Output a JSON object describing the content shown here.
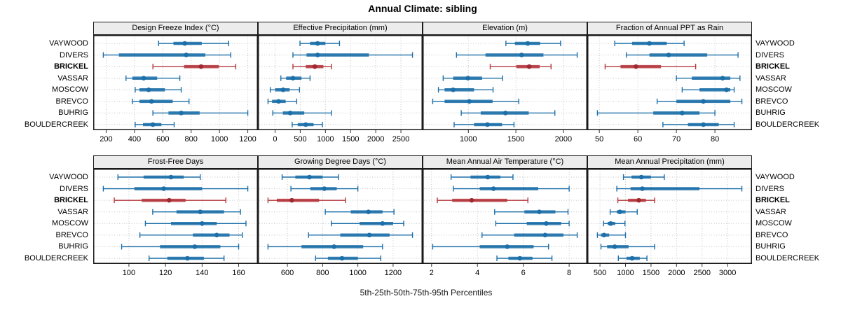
{
  "title": "Annual Climate: sibling",
  "caption": "5th-25th-50th-75th-95th Percentiles",
  "percentile_labels": [
    "5th",
    "25th",
    "50th",
    "75th",
    "95th"
  ],
  "sites": [
    "VAYWOOD",
    "DIVERS",
    "BRICKEL",
    "VASSAR",
    "MOSCOW",
    "BREVCO",
    "BUHRIG",
    "BOULDERCREEK"
  ],
  "highlight_site": "BRICKEL",
  "colors": {
    "normal": "#1c6fa9",
    "normal_band": "#1c6fa9",
    "highlight": "#b5383d",
    "highlight_dot": "#9e2b31",
    "grid": "#c3c3c3",
    "strip_bg": "#ececec",
    "border": "#1a1a1a"
  },
  "chart_data": [
    {
      "type": "dotplot-interval",
      "title": "Design Freeze Index (°C)",
      "ticks": [
        200,
        400,
        600,
        800,
        1000,
        1200
      ],
      "percentiles": [
        "5th",
        "25th",
        "50th",
        "75th",
        "95th"
      ],
      "series": [
        {
          "name": "VAYWOOD",
          "values": [
            570,
            675,
            755,
            875,
            1065
          ]
        },
        {
          "name": "DIVERS",
          "values": [
            180,
            290,
            765,
            900,
            1080
          ]
        },
        {
          "name": "BRICKEL",
          "values": [
            530,
            750,
            870,
            995,
            1115
          ]
        },
        {
          "name": "VASSAR",
          "values": [
            340,
            385,
            465,
            560,
            720
          ]
        },
        {
          "name": "MOSCOW",
          "values": [
            405,
            435,
            500,
            615,
            730
          ]
        },
        {
          "name": "BREVCO",
          "values": [
            385,
            435,
            520,
            670,
            785
          ]
        },
        {
          "name": "BUHRIG",
          "values": [
            530,
            640,
            730,
            860,
            1200
          ]
        },
        {
          "name": "BOULDERCREEK",
          "values": [
            405,
            460,
            530,
            590,
            680
          ]
        }
      ]
    },
    {
      "type": "dotplot-interval",
      "title": "Effective Precipitation (mm)",
      "ticks": [
        0,
        500,
        1000,
        1500,
        2000,
        2500
      ],
      "percentiles": [
        "5th",
        "25th",
        "50th",
        "75th",
        "95th"
      ],
      "series": [
        {
          "name": "VAYWOOD",
          "values": [
            495,
            695,
            845,
            1000,
            1280
          ]
        },
        {
          "name": "DIVERS",
          "values": [
            355,
            625,
            845,
            1865,
            2730
          ]
        },
        {
          "name": "BRICKEL",
          "values": [
            355,
            610,
            790,
            960,
            1120
          ]
        },
        {
          "name": "VASSAR",
          "values": [
            115,
            220,
            355,
            525,
            695
          ]
        },
        {
          "name": "MOSCOW",
          "values": [
            -95,
            0,
            160,
            290,
            485
          ]
        },
        {
          "name": "BREVCO",
          "values": [
            -140,
            -60,
            70,
            210,
            430
          ]
        },
        {
          "name": "BUHRIG",
          "values": [
            -45,
            155,
            300,
            580,
            1120
          ]
        },
        {
          "name": "BOULDERCREEK",
          "values": [
            340,
            450,
            610,
            765,
            940
          ]
        }
      ]
    },
    {
      "type": "dotplot-interval",
      "title": "Elevation (m)",
      "ticks": [
        1000,
        1500,
        2000
      ],
      "percentiles": [
        "5th",
        "25th",
        "50th",
        "75th",
        "95th"
      ],
      "series": [
        {
          "name": "VAYWOOD",
          "values": [
            1395,
            1490,
            1625,
            1755,
            1970
          ]
        },
        {
          "name": "DIVERS",
          "values": [
            875,
            1180,
            1560,
            1790,
            2145
          ]
        },
        {
          "name": "BRICKEL",
          "values": [
            1230,
            1505,
            1640,
            1750,
            1870
          ]
        },
        {
          "name": "VASSAR",
          "values": [
            735,
            840,
            995,
            1145,
            1360
          ]
        },
        {
          "name": "MOSCOW",
          "values": [
            685,
            750,
            840,
            1060,
            1260
          ]
        },
        {
          "name": "BREVCO",
          "values": [
            625,
            750,
            1010,
            1255,
            1530
          ]
        },
        {
          "name": "BUHRIG",
          "values": [
            925,
            1130,
            1390,
            1635,
            1910
          ]
        },
        {
          "name": "BOULDERCREEK",
          "values": [
            850,
            1060,
            1200,
            1355,
            1480
          ]
        }
      ]
    },
    {
      "type": "dotplot-interval",
      "title": "Fraction of Annual PPT as Rain",
      "ticks": [
        50,
        60,
        70,
        80
      ],
      "percentiles": [
        "5th",
        "25th",
        "50th",
        "75th",
        "95th"
      ],
      "series": [
        {
          "name": "VAYWOOD",
          "values": [
            54,
            58.5,
            63,
            67.5,
            72
          ]
        },
        {
          "name": "DIVERS",
          "values": [
            57,
            63,
            68,
            78,
            86
          ]
        },
        {
          "name": "BRICKEL",
          "values": [
            51.5,
            55.5,
            59.5,
            66,
            75
          ]
        },
        {
          "name": "VASSAR",
          "values": [
            70,
            74,
            82,
            84,
            86.5
          ]
        },
        {
          "name": "MOSCOW",
          "values": [
            71.5,
            76,
            83,
            84,
            85
          ]
        },
        {
          "name": "BREVCO",
          "values": [
            65,
            70,
            77,
            84,
            87
          ]
        },
        {
          "name": "BUHRIG",
          "values": [
            49.5,
            64,
            71.5,
            76,
            80
          ]
        },
        {
          "name": "BOULDERCREEK",
          "values": [
            66.5,
            73,
            77,
            81,
            85
          ]
        }
      ]
    },
    {
      "type": "dotplot-interval",
      "title": "Frost-Free Days",
      "ticks": [
        100,
        120,
        140,
        160
      ],
      "percentiles": [
        "5th",
        "25th",
        "50th",
        "75th",
        "95th"
      ],
      "series": [
        {
          "name": "VAYWOOD",
          "values": [
            94,
            108,
            123,
            130,
            139
          ]
        },
        {
          "name": "DIVERS",
          "values": [
            86,
            103,
            119,
            140,
            165
          ]
        },
        {
          "name": "BRICKEL",
          "values": [
            92,
            107,
            122,
            131,
            153
          ]
        },
        {
          "name": "VASSAR",
          "values": [
            113,
            126,
            139,
            152,
            161
          ]
        },
        {
          "name": "MOSCOW",
          "values": [
            109,
            123,
            140,
            148,
            164
          ]
        },
        {
          "name": "BREVCO",
          "values": [
            106,
            135,
            148,
            155,
            162
          ]
        },
        {
          "name": "BUHRIG",
          "values": [
            96,
            117,
            136,
            150,
            160
          ]
        },
        {
          "name": "BOULDERCREEK",
          "values": [
            111,
            121,
            132,
            141,
            152
          ]
        }
      ]
    },
    {
      "type": "dotplot-interval",
      "title": "Growing Degree Days (°C)",
      "ticks": [
        600,
        800,
        1000,
        1200
      ],
      "percentiles": [
        "5th",
        "25th",
        "50th",
        "75th",
        "95th"
      ],
      "series": [
        {
          "name": "VAYWOOD",
          "values": [
            570,
            645,
            725,
            800,
            890
          ]
        },
        {
          "name": "DIVERS",
          "values": [
            620,
            730,
            810,
            880,
            1000
          ]
        },
        {
          "name": "BRICKEL",
          "values": [
            490,
            540,
            625,
            780,
            930
          ]
        },
        {
          "name": "VASSAR",
          "values": [
            815,
            960,
            1060,
            1140,
            1205
          ]
        },
        {
          "name": "MOSCOW",
          "values": [
            850,
            1010,
            1140,
            1200,
            1260
          ]
        },
        {
          "name": "BREVCO",
          "values": [
            720,
            900,
            1065,
            1180,
            1310
          ]
        },
        {
          "name": "BUHRIG",
          "values": [
            490,
            680,
            865,
            1030,
            1140
          ]
        },
        {
          "name": "BOULDERCREEK",
          "values": [
            760,
            830,
            910,
            1000,
            1130
          ]
        }
      ]
    },
    {
      "type": "dotplot-interval",
      "title": "Mean Annual Air Temperature (°C)",
      "ticks": [
        2,
        4,
        6,
        8
      ],
      "percentiles": [
        "5th",
        "25th",
        "50th",
        "75th",
        "95th"
      ],
      "series": [
        {
          "name": "VAYWOOD",
          "values": [
            2.85,
            3.7,
            4.45,
            5.0,
            5.55
          ]
        },
        {
          "name": "DIVERS",
          "values": [
            2.95,
            4.1,
            4.7,
            6.65,
            8.0
          ]
        },
        {
          "name": "BRICKEL",
          "values": [
            2.25,
            2.9,
            3.75,
            5.3,
            6.2
          ]
        },
        {
          "name": "VASSAR",
          "values": [
            4.75,
            6.05,
            6.7,
            7.4,
            7.95
          ]
        },
        {
          "name": "MOSCOW",
          "values": [
            4.8,
            6.15,
            7.0,
            7.65,
            8.0
          ]
        },
        {
          "name": "BREVCO",
          "values": [
            4.2,
            5.6,
            6.95,
            7.75,
            8.35
          ]
        },
        {
          "name": "BUHRIG",
          "values": [
            2.05,
            4.1,
            5.3,
            6.45,
            7.1
          ]
        },
        {
          "name": "BOULDERCREEK",
          "values": [
            4.85,
            5.35,
            5.85,
            6.4,
            7.25
          ]
        }
      ]
    },
    {
      "type": "dotplot-interval",
      "title": "Mean Annual Precipitation (mm)",
      "ticks": [
        500,
        1000,
        1500,
        2000,
        2500,
        3000
      ],
      "percentiles": [
        "5th",
        "25th",
        "50th",
        "75th",
        "95th"
      ],
      "series": [
        {
          "name": "VAYWOOD",
          "values": [
            960,
            1120,
            1310,
            1500,
            1760
          ]
        },
        {
          "name": "DIVERS",
          "values": [
            830,
            1100,
            1330,
            2450,
            3280
          ]
        },
        {
          "name": "BRICKEL",
          "values": [
            850,
            1050,
            1260,
            1400,
            1570
          ]
        },
        {
          "name": "VASSAR",
          "values": [
            700,
            830,
            890,
            1000,
            1230
          ]
        },
        {
          "name": "MOSCOW",
          "values": [
            570,
            650,
            710,
            800,
            990
          ]
        },
        {
          "name": "BREVCO",
          "values": [
            450,
            520,
            580,
            680,
            1000
          ]
        },
        {
          "name": "BUHRIG",
          "values": [
            520,
            640,
            790,
            1060,
            1570
          ]
        },
        {
          "name": "BOULDERCREEK",
          "values": [
            860,
            1020,
            1130,
            1280,
            1420
          ]
        }
      ]
    }
  ]
}
